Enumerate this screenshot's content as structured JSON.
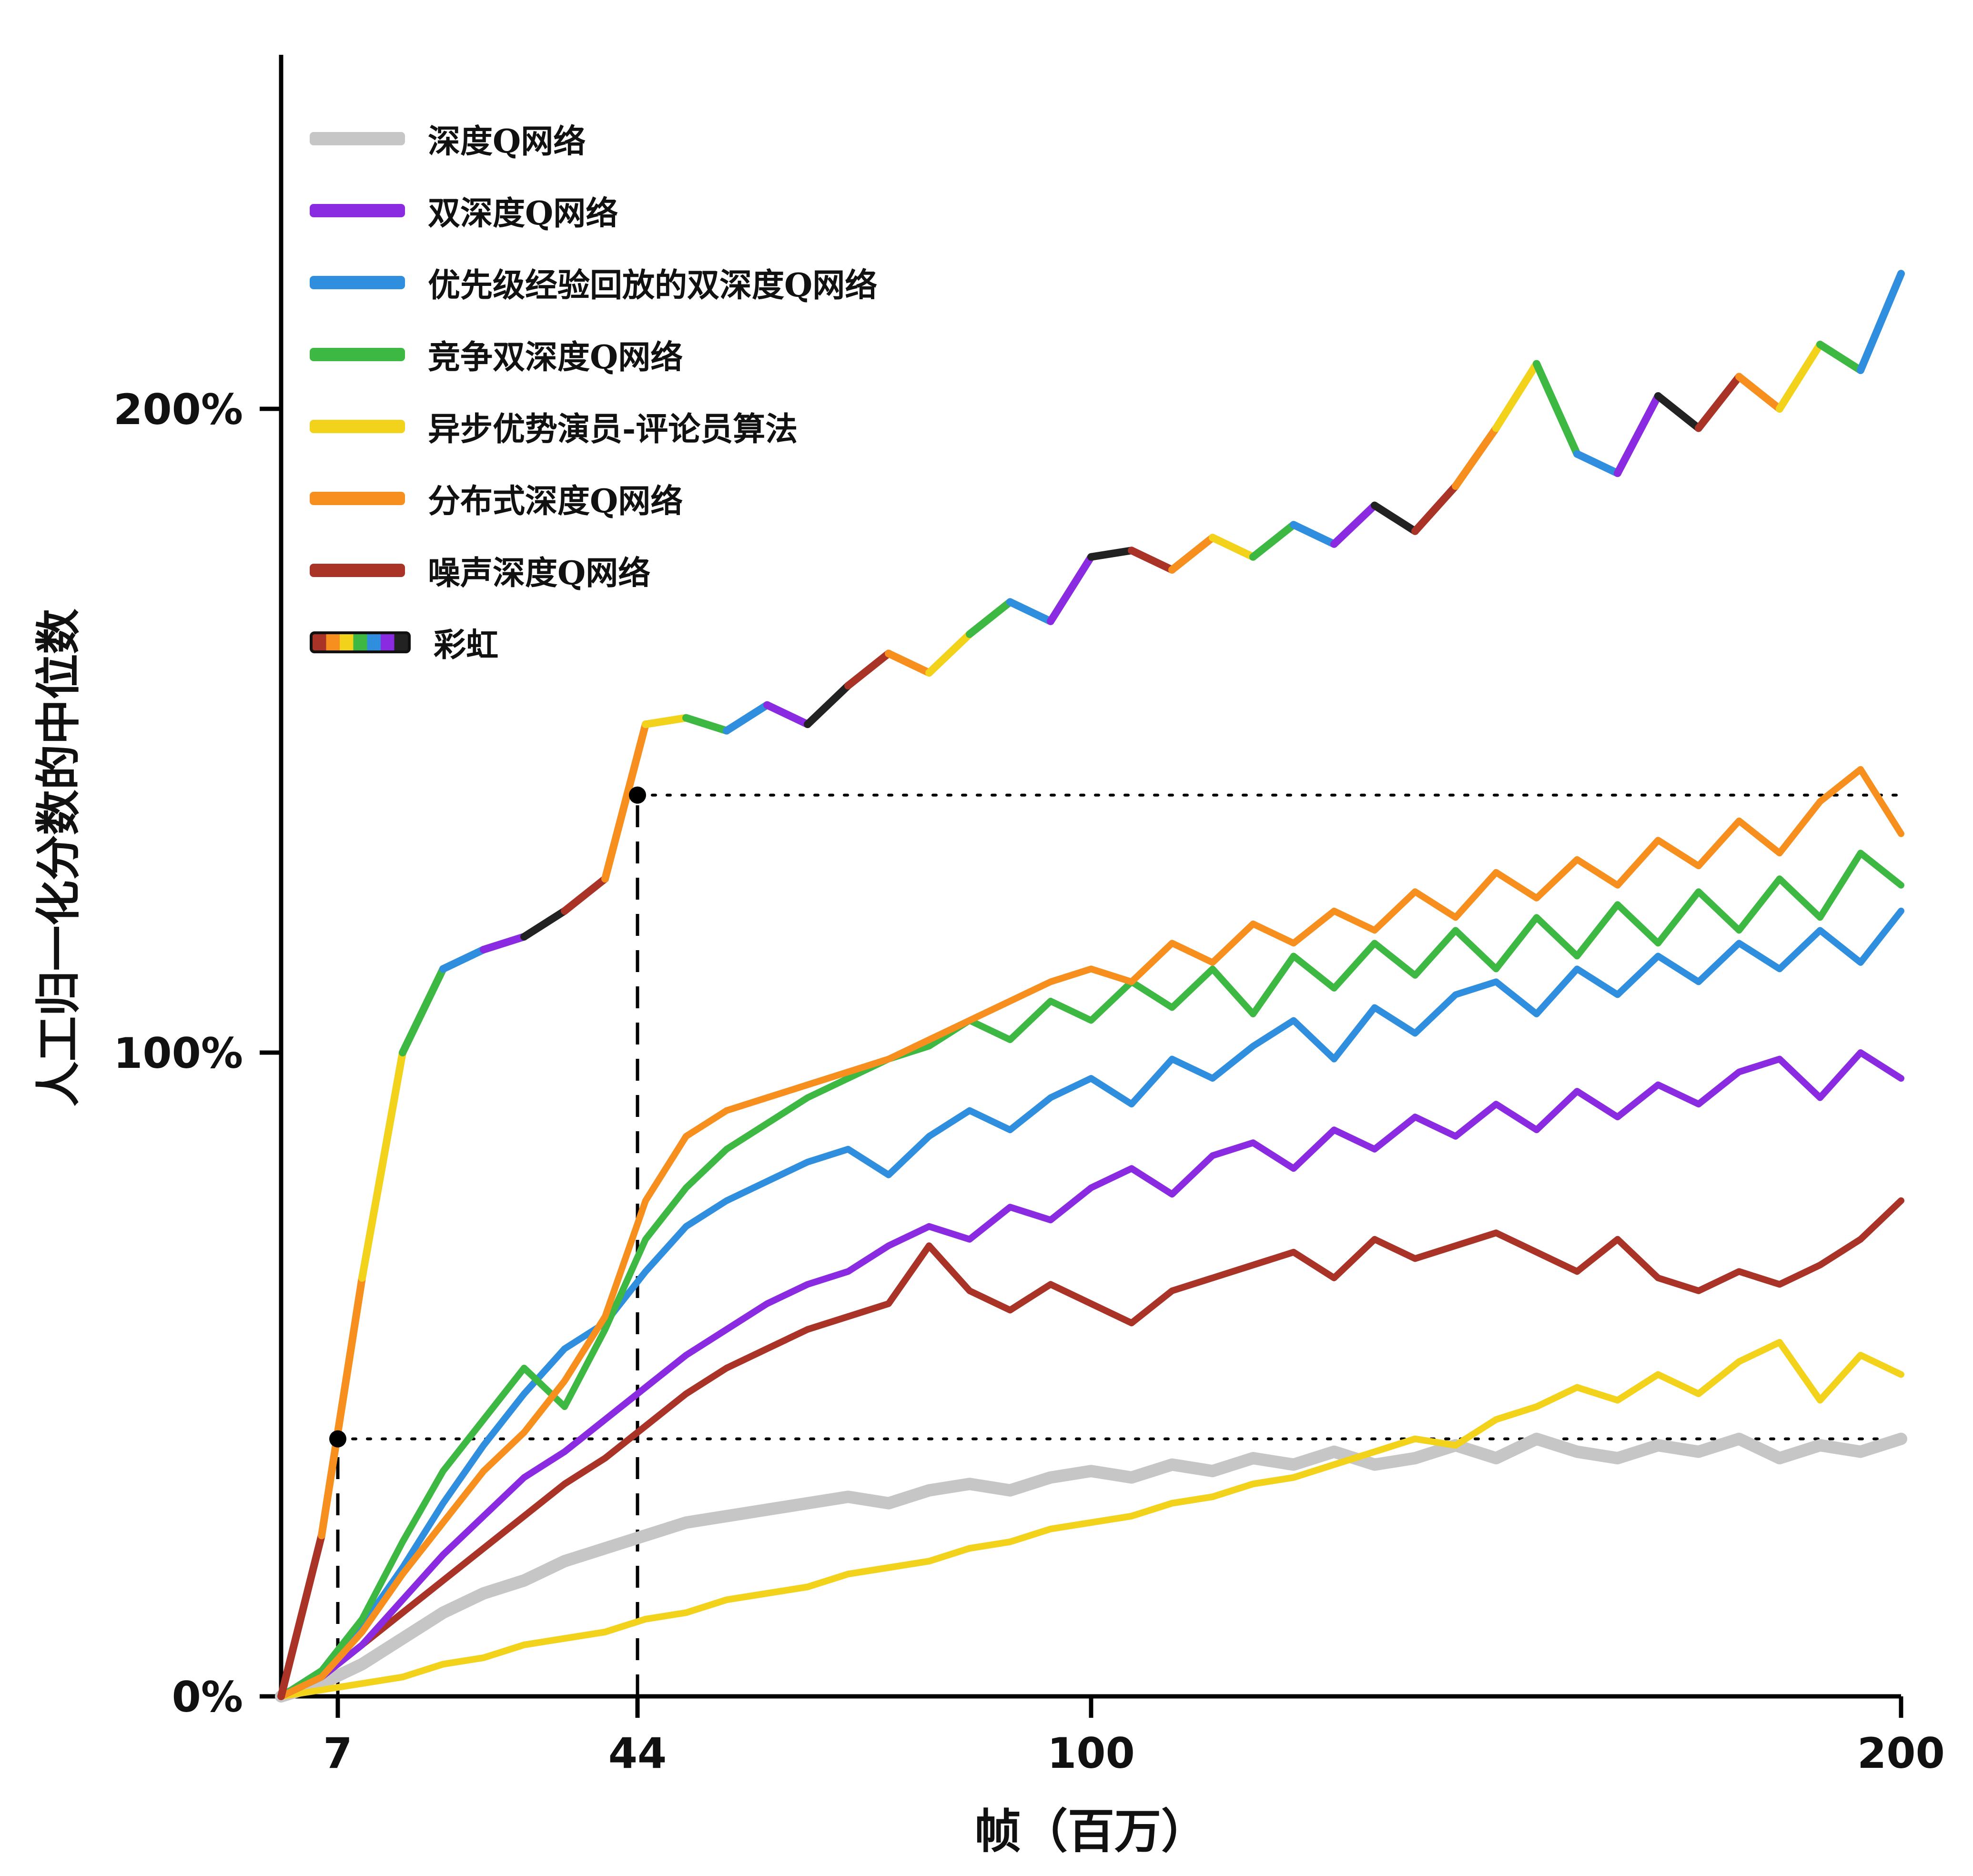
{
  "figure": {
    "ylabel": "人工归一化分数的中位数",
    "xlabel": "帧（百万）"
  },
  "legend": {
    "items": [
      {
        "label": "深度Q网络",
        "color": "#c6c6c6"
      },
      {
        "label": "双深度Q网络",
        "color": "#8a2be2"
      },
      {
        "label": "优先级经验回放的双深度Q网络",
        "color": "#2f8fde"
      },
      {
        "label": "竞争双深度Q网络",
        "color": "#3cb843"
      },
      {
        "label": "异步优势演员-评论员算法",
        "color": "#f3d21b"
      },
      {
        "label": "分布式深度Q网络",
        "color": "#f78f1e"
      },
      {
        "label": "噪声深度Q网络",
        "color": "#a93327"
      },
      {
        "label": "彩虹",
        "colors": [
          "#a93327",
          "#f78f1e",
          "#f3d21b",
          "#3cb843",
          "#2f8fde",
          "#8a2be2",
          "#222222"
        ]
      }
    ]
  },
  "chart_data": {
    "type": "line",
    "title": "",
    "xlabel": "帧（百万）",
    "ylabel": "人工归一化分数的中位数",
    "xlim": [
      0,
      200
    ],
    "ylim": [
      0,
      255
    ],
    "x_ticks": [
      {
        "value": 7,
        "label": "7"
      },
      {
        "value": 44,
        "label": "44"
      },
      {
        "value": 100,
        "label": "100"
      },
      {
        "value": 200,
        "label": "200"
      }
    ],
    "y_ticks": [
      {
        "value": 0,
        "label": "0%"
      },
      {
        "value": 100,
        "label": "100%"
      },
      {
        "value": 200,
        "label": "200%"
      }
    ],
    "grid": false,
    "legend_position": "top-left",
    "x": [
      0,
      5,
      10,
      15,
      20,
      25,
      30,
      35,
      40,
      45,
      50,
      55,
      60,
      65,
      70,
      75,
      80,
      85,
      90,
      95,
      100,
      105,
      110,
      115,
      120,
      125,
      130,
      135,
      140,
      145,
      150,
      155,
      160,
      165,
      170,
      175,
      180,
      185,
      190,
      195,
      200
    ],
    "series": [
      {
        "name": "深度Q网络",
        "color": "#c6c6c6",
        "width": 26,
        "values": [
          0,
          2,
          5,
          9,
          13,
          16,
          18,
          21,
          23,
          25,
          27,
          28,
          29,
          30,
          31,
          30,
          32,
          33,
          32,
          34,
          35,
          34,
          36,
          35,
          37,
          36,
          38,
          36,
          37,
          39,
          37,
          40,
          38,
          37,
          39,
          38,
          40,
          37,
          39,
          38,
          40
        ]
      },
      {
        "name": "异步优势演员-评论员算法",
        "color": "#f3d21b",
        "width": 14,
        "values": [
          0,
          1,
          2,
          3,
          5,
          6,
          8,
          9,
          10,
          12,
          13,
          15,
          16,
          17,
          19,
          20,
          21,
          23,
          24,
          26,
          27,
          28,
          30,
          31,
          33,
          34,
          36,
          38,
          40,
          39,
          43,
          45,
          48,
          46,
          50,
          47,
          52,
          55,
          46,
          53,
          50
        ]
      },
      {
        "name": "噪声深度Q网络",
        "color": "#a93327",
        "width": 14,
        "values": [
          0,
          3,
          8,
          13,
          18,
          23,
          28,
          33,
          37,
          42,
          47,
          51,
          54,
          57,
          59,
          61,
          70,
          63,
          60,
          64,
          61,
          58,
          63,
          65,
          67,
          69,
          65,
          71,
          68,
          70,
          72,
          69,
          66,
          71,
          65,
          63,
          66,
          64,
          67,
          71,
          77
        ]
      },
      {
        "name": "双深度Q网络",
        "color": "#8a2be2",
        "width": 14,
        "values": [
          0,
          3,
          8,
          15,
          22,
          28,
          34,
          38,
          43,
          48,
          53,
          57,
          61,
          64,
          66,
          70,
          73,
          71,
          76,
          74,
          79,
          82,
          78,
          84,
          86,
          82,
          88,
          85,
          90,
          87,
          92,
          88,
          94,
          90,
          95,
          92,
          97,
          99,
          93,
          100,
          96
        ]
      },
      {
        "name": "优先级经验回放的双深度Q网络",
        "color": "#2f8fde",
        "width": 14,
        "values": [
          0,
          4,
          11,
          20,
          30,
          39,
          47,
          54,
          58,
          66,
          73,
          77,
          80,
          83,
          85,
          81,
          87,
          91,
          88,
          93,
          96,
          92,
          99,
          96,
          101,
          105,
          99,
          107,
          103,
          109,
          111,
          106,
          113,
          109,
          115,
          111,
          117,
          113,
          119,
          114,
          122
        ]
      },
      {
        "name": "竞争双深度Q网络",
        "color": "#3cb843",
        "width": 14,
        "values": [
          0,
          4,
          12,
          24,
          35,
          43,
          51,
          45,
          57,
          71,
          79,
          85,
          89,
          93,
          96,
          99,
          101,
          105,
          102,
          108,
          105,
          111,
          107,
          113,
          106,
          115,
          110,
          117,
          112,
          119,
          113,
          121,
          115,
          123,
          117,
          125,
          119,
          127,
          121,
          131,
          126
        ]
      },
      {
        "name": "分布式深度Q网络",
        "color": "#f78f1e",
        "width": 14,
        "values": [
          0,
          3,
          10,
          19,
          27,
          35,
          41,
          49,
          59,
          77,
          87,
          91,
          93,
          95,
          97,
          99,
          102,
          105,
          108,
          111,
          113,
          111,
          117,
          114,
          120,
          117,
          122,
          119,
          125,
          121,
          128,
          124,
          130,
          126,
          133,
          129,
          136,
          131,
          139,
          144,
          134
        ]
      },
      {
        "name": "彩虹",
        "multicolor": true,
        "width": 16,
        "colors": [
          "#a93327",
          "#f78f1e",
          "#f3d21b",
          "#3cb843",
          "#2f8fde",
          "#8a2be2",
          "#222222"
        ],
        "values": [
          0,
          25,
          65,
          100,
          113,
          116,
          118,
          122,
          127,
          151,
          152,
          150,
          154,
          151,
          157,
          162,
          159,
          165,
          170,
          167,
          177,
          178,
          175,
          180,
          177,
          182,
          179,
          185,
          181,
          188,
          197,
          207,
          193,
          190,
          202,
          197,
          205,
          200,
          210,
          206,
          221
        ]
      }
    ],
    "annotations": {
      "vlines": [
        {
          "x": 7,
          "y_from": 0,
          "y_to": 40
        },
        {
          "x": 44,
          "y_from": 0,
          "y_to": 140
        }
      ],
      "hlines": [
        {
          "y": 40,
          "x_from": 7,
          "x_to": 200
        },
        {
          "y": 140,
          "x_from": 44,
          "x_to": 200
        }
      ],
      "points": [
        {
          "x": 7,
          "y": 40
        },
        {
          "x": 44,
          "y": 140
        }
      ]
    }
  }
}
